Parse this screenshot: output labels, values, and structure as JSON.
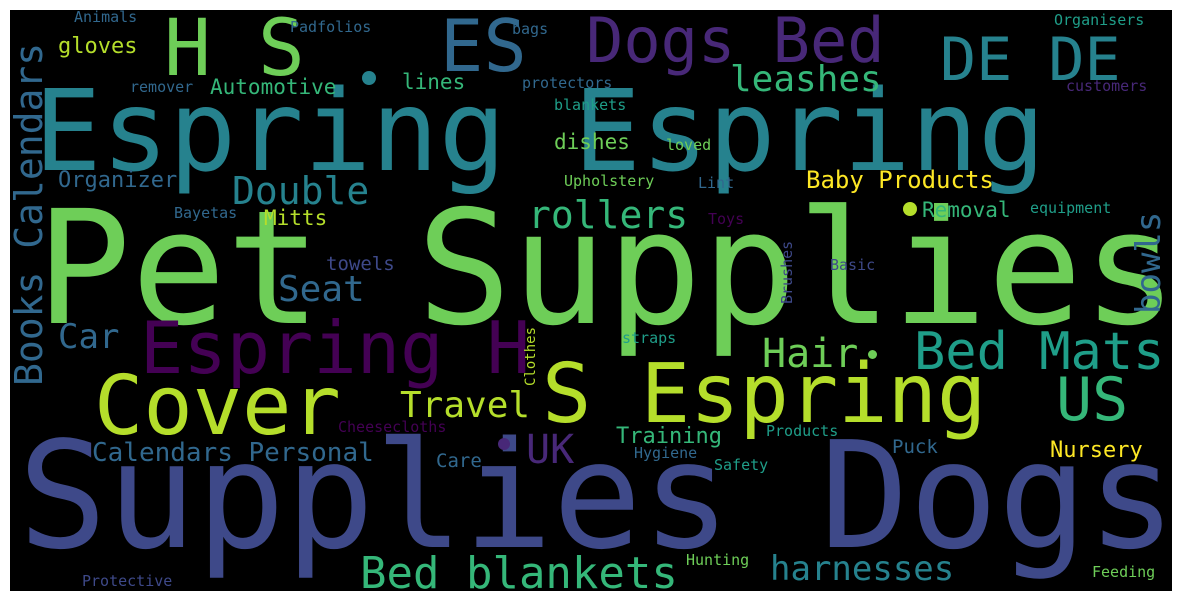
{
  "palette": {
    "frame": "#ffffff",
    "background": "#000000",
    "dark_purple": "#440154",
    "indigo": "#482878",
    "slate_blue": "#3e4989",
    "steel_blue": "#31688e",
    "teal": "#26828e",
    "sea_green": "#1f9e89",
    "green": "#35b779",
    "light_green": "#6ece58",
    "lime": "#b5de2b",
    "yellow": "#fde725"
  },
  "words": {
    "pet_supplies": "Pet Supplies",
    "supplies_dogs": "Supplies Dogs",
    "espring_espring": "Espring Espring",
    "s_espring": "S Espring",
    "cover": "Cover",
    "espring_h": "Espring H",
    "h_s": "H S",
    "es": "ES",
    "dogs_bed": "Dogs Bed",
    "de_de": "DE DE",
    "books_calendars": "Books Calendars",
    "bed_mats": "Bed Mats",
    "us": "US",
    "bed_blankets": "Bed blankets",
    "harnesses": "harnesses",
    "double": "Double",
    "rollers": "rollers",
    "leashes": "leashes",
    "seat": "Seat",
    "hair": "Hair",
    "travel": "Travel",
    "uk": "UK",
    "car": "Car",
    "bowls": "bowls",
    "calendars_personal": "Calendars Personal",
    "baby_products": "Baby Products",
    "training": "Training",
    "nursery": "Nursery",
    "automotive": "Automotive",
    "gloves": "gloves",
    "organizer": "Organizer",
    "mitts": "Mitts",
    "removal": "Removal",
    "dishes": "dishes",
    "lines": "lines",
    "towels": "towels",
    "care": "Care",
    "puck": "Puck",
    "animals": "Animals",
    "padfolios": "Padfolios",
    "bags": "bags",
    "organisers": "Organisers",
    "remover": "remover",
    "protectors": "protectors",
    "customers": "customers",
    "blankets": "blankets",
    "loved": "loved",
    "upholstery": "Upholstery",
    "lint": "Lint",
    "bayetas": "Bayetas",
    "toys": "Toys",
    "equipment": "equipment",
    "basic": "Basic",
    "brushes": "Brushes",
    "clothes": "Clothes",
    "straps": "straps",
    "cheesecloths": "Cheesecloths",
    "products": "Products",
    "hygiene": "Hygiene",
    "safety": "Safety",
    "hunting": "Hunting",
    "protective": "Protective",
    "feeding": "Feeding"
  }
}
